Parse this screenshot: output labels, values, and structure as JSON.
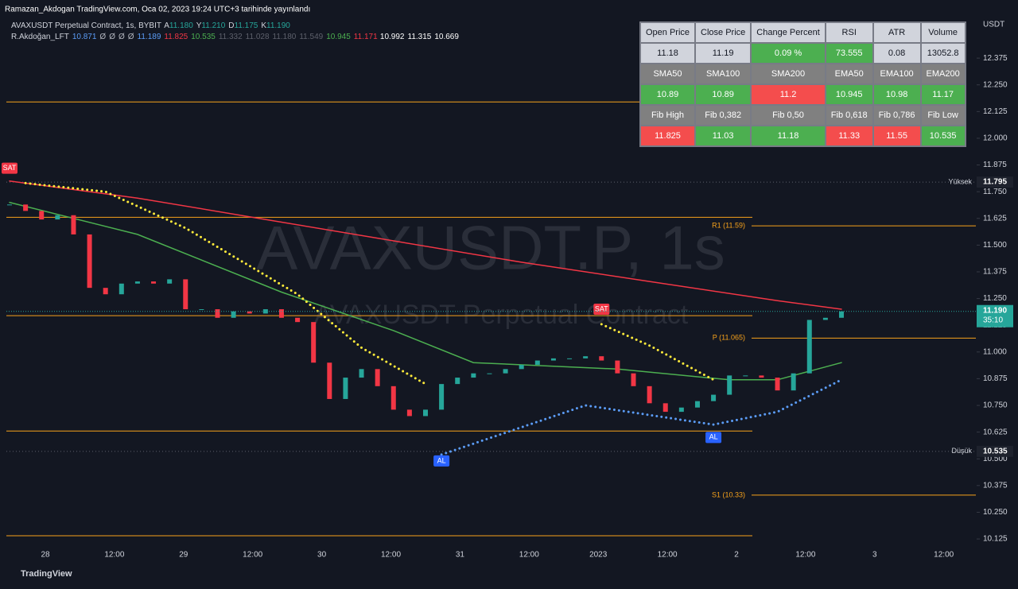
{
  "header": {
    "published": "Ramazan_Akdogan TradingView.com, Oca 02, 2023 19:24 UTC+3 tarihinde yayınlandı",
    "symbol": "AVAXUSDT Perpetual Contract, 1s, BYBIT",
    "ohlc": [
      {
        "key": "A",
        "value": "11.180"
      },
      {
        "key": "Y",
        "value": "11.210"
      },
      {
        "key": "D",
        "value": "11.175"
      },
      {
        "key": "K",
        "value": "11.190"
      }
    ],
    "indicator": "R.Akdoğan_LFT",
    "indicator_values": [
      {
        "text": "10.871",
        "color": "#5b9cf6"
      },
      {
        "text": "Ø",
        "color": "#b2b5be"
      },
      {
        "text": "Ø",
        "color": "#b2b5be"
      },
      {
        "text": "Ø",
        "color": "#b2b5be"
      },
      {
        "text": "Ø",
        "color": "#b2b5be"
      },
      {
        "text": "11.189",
        "color": "#5b9cf6"
      },
      {
        "text": "11.825",
        "color": "#f23645"
      },
      {
        "text": "10.535",
        "color": "#4caf50"
      },
      {
        "text": "11.332",
        "color": "#5d606b"
      },
      {
        "text": "11.028",
        "color": "#5d606b"
      },
      {
        "text": "11.180",
        "color": "#5d606b"
      },
      {
        "text": "11.549",
        "color": "#5d606b"
      },
      {
        "text": "10.945",
        "color": "#4caf50"
      },
      {
        "text": "11.171",
        "color": "#f23645"
      },
      {
        "text": "10.992",
        "color": "#ffffff"
      },
      {
        "text": "11.315",
        "color": "#ffffff"
      },
      {
        "text": "10.669",
        "color": "#ffffff"
      }
    ]
  },
  "table": {
    "rows": [
      [
        "Open Price",
        "Close Price",
        "Change Percent",
        "RSI",
        "ATR",
        "Volume"
      ],
      [
        "11.18",
        "11.19",
        "0.09 %",
        "73.555",
        "0.08",
        "13052.8"
      ],
      [
        "SMA50",
        "SMA100",
        "SMA200",
        "EMA50",
        "EMA100",
        "EMA200"
      ],
      [
        "10.89",
        "10.89",
        "11.2",
        "10.945",
        "10.98",
        "11.17"
      ],
      [
        "Fib High",
        "Fib 0,382",
        "Fib 0,50",
        "Fib 0,618",
        "Fib 0,786",
        "Fib Low"
      ],
      [
        "11.825",
        "11.03",
        "11.18",
        "11.33",
        "11.55",
        "10.535"
      ]
    ],
    "fills": [
      [
        "#d1d4dc",
        "#d1d4dc",
        "#d1d4dc",
        "#d1d4dc",
        "#d1d4dc",
        "#d1d4dc"
      ],
      [
        "#d1d4dc",
        "#d1d4dc",
        "#4caf50",
        "#4caf50",
        "#d1d4dc",
        "#d1d4dc"
      ],
      [
        "#808080",
        "#808080",
        "#808080",
        "#808080",
        "#808080",
        "#808080"
      ],
      [
        "#4caf50",
        "#4caf50",
        "#f44d4d",
        "#4caf50",
        "#4caf50",
        "#4caf50"
      ],
      [
        "#808080",
        "#808080",
        "#808080",
        "#808080",
        "#808080",
        "#808080"
      ],
      [
        "#f44d4d",
        "#4caf50",
        "#4caf50",
        "#f44d4d",
        "#f44d4d",
        "#4caf50"
      ]
    ]
  },
  "chart_data": {
    "type": "candlestick",
    "currency": "USDT",
    "watermark": "AVAXUSDT.P, 1s",
    "watermark_sub": "AVAXUSDT Perpetual Contract",
    "footer": "TradingView",
    "closes": [
      11.69,
      11.66,
      11.62,
      11.64,
      11.55,
      11.3,
      11.27,
      11.32,
      11.33,
      11.32,
      11.34,
      11.2,
      11.2,
      11.16,
      11.19,
      11.18,
      11.2,
      11.16,
      11.14,
      10.95,
      10.78,
      10.88,
      10.92,
      10.84,
      10.73,
      10.7,
      10.73,
      10.85,
      10.88,
      10.9,
      10.9,
      10.92,
      10.94,
      10.96,
      10.97,
      10.97,
      10.98,
      10.96,
      10.9,
      10.84,
      10.76,
      10.72,
      10.74,
      10.77,
      10.8,
      10.89,
      10.89,
      10.88,
      10.82,
      10.9,
      11.15,
      11.16,
      11.19
    ],
    "ylim": [
      10.088,
      12.647
    ],
    "yticks": [
      12.375,
      {
        "value": 12.25,
        "label": "12.250"
      },
      12.125,
      {
        "value": 12.0,
        "label": "12.000"
      },
      11.875,
      {
        "value": 11.75,
        "label": "11.750"
      },
      11.625,
      {
        "value": 11.5,
        "label": "11.500"
      },
      11.375,
      {
        "value": 11.25,
        "label": "11.250"
      },
      11.125,
      {
        "value": 11.0,
        "label": "11.000"
      },
      10.875,
      {
        "value": 10.75,
        "label": "10.750"
      },
      10.625,
      {
        "value": 10.5,
        "label": "10.500"
      },
      10.375,
      {
        "value": 10.25,
        "label": "10.250"
      },
      10.125
    ],
    "x_labels": [
      "28",
      "12:00",
      "29",
      "12:00",
      "30",
      "12:00",
      "31",
      "12:00",
      "2023",
      "12:00",
      "2",
      "12:00",
      "3",
      "12:00"
    ],
    "lines": [
      {
        "name": "EMA200",
        "color": "#f23645",
        "style": "solid",
        "x": [
          0,
          8,
          16,
          24,
          32,
          40,
          48,
          52
        ],
        "values": [
          11.8,
          11.72,
          11.62,
          11.52,
          11.42,
          11.33,
          11.24,
          11.2
        ]
      },
      {
        "name": "EMA50",
        "color": "#4caf50",
        "style": "solid",
        "x": [
          0,
          8,
          17,
          24,
          29,
          38,
          45,
          48,
          52
        ],
        "values": [
          11.7,
          11.55,
          11.28,
          11.1,
          10.95,
          10.92,
          10.87,
          10.87,
          10.95
        ]
      },
      {
        "name": "SAR",
        "color": "#ffeb3b",
        "style": "dotted",
        "x": [
          1,
          6,
          11,
          18,
          22,
          26
        ],
        "values": [
          11.79,
          11.75,
          11.58,
          11.27,
          11.02,
          10.85
        ]
      },
      {
        "name": "SAR2",
        "color": "#ffeb3b",
        "style": "dotted",
        "x": [
          37,
          40,
          44
        ],
        "values": [
          11.13,
          11.03,
          10.87
        ]
      },
      {
        "name": "Support",
        "color": "#5b9cf6",
        "style": "dotted",
        "x": [
          27,
          36,
          44,
          48,
          52
        ],
        "values": [
          10.52,
          10.75,
          10.66,
          10.72,
          10.87
        ]
      }
    ],
    "levels": [
      {
        "value": 12.17,
        "color": "#f7a21b",
        "span": "left"
      },
      {
        "value": 11.63,
        "color": "#f7a21b",
        "span": "left"
      },
      {
        "value": 11.17,
        "color": "#f7a21b",
        "span": "left"
      },
      {
        "value": 10.63,
        "color": "#f7a21b",
        "span": "left"
      },
      {
        "value": 10.14,
        "color": "#f7a21b",
        "span": "left"
      },
      {
        "value": 11.59,
        "color": "#f7a21b",
        "span": "right",
        "label": "R1 (11.59)"
      },
      {
        "value": 11.065,
        "color": "#f7a21b",
        "span": "right",
        "label": "P (11.065)"
      },
      {
        "value": 10.33,
        "color": "#f7a21b",
        "span": "right",
        "label": "S1 (10.33)"
      }
    ],
    "marks": [
      {
        "value": 11.795,
        "text": "Yüksek",
        "price_label": "11.795"
      },
      {
        "value": 10.535,
        "text": "Düşük",
        "price_label": "10.535"
      }
    ],
    "last_price": {
      "value": 11.19,
      "label": "11.190",
      "countdown": "35:10"
    },
    "signals": [
      {
        "text": "SAT",
        "index": 0,
        "value": 11.86,
        "color": "#f23645"
      },
      {
        "text": "SAT",
        "index": 37,
        "value": 11.2,
        "color": "#f23645"
      },
      {
        "text": "AL",
        "index": 27,
        "value": 10.49,
        "color": "#2962ff"
      },
      {
        "text": "AL",
        "index": 44,
        "value": 10.6,
        "color": "#2962ff"
      }
    ]
  }
}
